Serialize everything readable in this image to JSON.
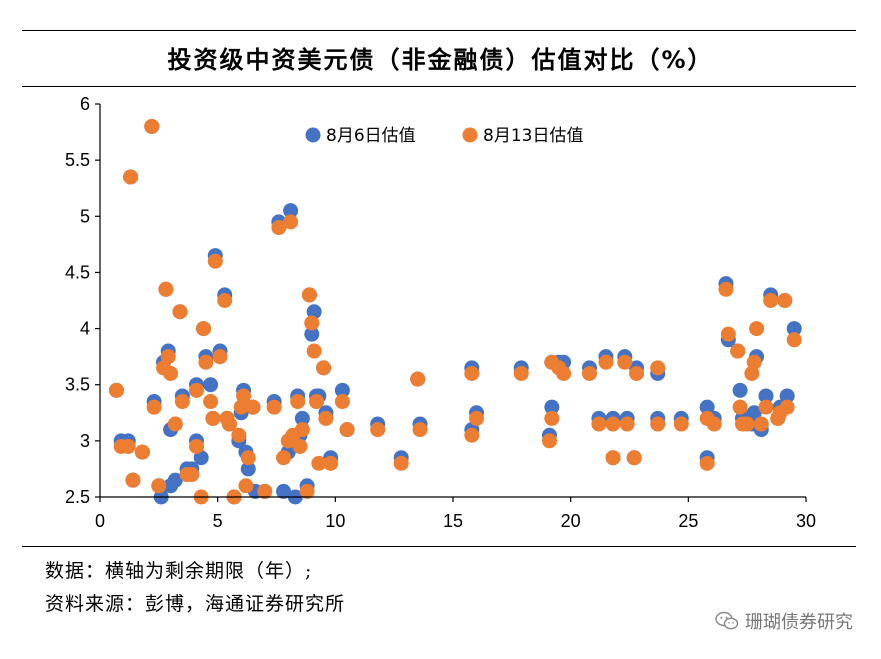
{
  "title": "投资级中资美元债（非金融债）估值对比（%）",
  "notes": {
    "line1": "数据：横轴为剩余期限（年）;",
    "line2": "资料来源：彭博，海通证券研究所"
  },
  "watermark": {
    "text": "珊瑚债券研究",
    "icon": "wechat-icon"
  },
  "colors": {
    "series1": "#4472C4",
    "series2": "#ED7D31",
    "axis": "#000000"
  },
  "chart_data": {
    "type": "scatter",
    "title": "投资级中资美元债（非金融债）估值对比（%）",
    "xlabel": "",
    "ylabel": "",
    "xlim": [
      0,
      30
    ],
    "ylim": [
      2.5,
      6
    ],
    "x_ticks": [
      "0",
      "5",
      "10",
      "15",
      "20",
      "25",
      "30"
    ],
    "y_ticks": [
      "2.5",
      "3",
      "3.5",
      "4",
      "4.5",
      "5",
      "5.5",
      "6"
    ],
    "legend_position": "top",
    "grid": false,
    "series": [
      {
        "name": "8月6日估值",
        "color": "#4472C4",
        "points": [
          [
            0.7,
            3.45
          ],
          [
            0.9,
            3.0
          ],
          [
            1.2,
            3.0
          ],
          [
            1.3,
            5.35
          ],
          [
            1.4,
            2.65
          ],
          [
            1.8,
            2.9
          ],
          [
            2.2,
            5.8
          ],
          [
            2.3,
            3.35
          ],
          [
            2.5,
            2.6
          ],
          [
            2.6,
            2.5
          ],
          [
            2.7,
            3.7
          ],
          [
            2.8,
            4.35
          ],
          [
            2.9,
            3.8
          ],
          [
            3.0,
            2.6
          ],
          [
            3.0,
            3.1
          ],
          [
            3.2,
            2.65
          ],
          [
            3.4,
            4.15
          ],
          [
            3.5,
            3.4
          ],
          [
            3.7,
            2.75
          ],
          [
            3.9,
            2.75
          ],
          [
            4.1,
            3.5
          ],
          [
            4.1,
            3.0
          ],
          [
            4.3,
            2.85
          ],
          [
            4.4,
            4.0
          ],
          [
            4.5,
            3.75
          ],
          [
            4.7,
            3.5
          ],
          [
            4.8,
            3.2
          ],
          [
            4.9,
            4.65
          ],
          [
            5.1,
            3.8
          ],
          [
            5.3,
            4.3
          ],
          [
            5.4,
            3.2
          ],
          [
            5.5,
            3.15
          ],
          [
            5.7,
            2.5
          ],
          [
            5.9,
            3.0
          ],
          [
            6.0,
            3.25
          ],
          [
            6.1,
            3.45
          ],
          [
            6.2,
            2.9
          ],
          [
            6.3,
            2.75
          ],
          [
            6.5,
            3.3
          ],
          [
            6.6,
            2.55
          ],
          [
            7.0,
            2.55
          ],
          [
            7.4,
            3.35
          ],
          [
            7.6,
            4.95
          ],
          [
            7.8,
            2.55
          ],
          [
            8.0,
            2.9
          ],
          [
            8.1,
            5.05
          ],
          [
            8.2,
            3.0
          ],
          [
            8.3,
            2.5
          ],
          [
            8.4,
            3.4
          ],
          [
            8.5,
            3.05
          ],
          [
            8.6,
            3.2
          ],
          [
            8.8,
            2.6
          ],
          [
            8.9,
            4.3
          ],
          [
            9.0,
            3.95
          ],
          [
            9.1,
            4.15
          ],
          [
            9.2,
            3.4
          ],
          [
            9.3,
            3.4
          ],
          [
            9.5,
            3.65
          ],
          [
            9.6,
            3.25
          ],
          [
            9.8,
            2.85
          ],
          [
            10.3,
            3.45
          ],
          [
            10.5,
            3.1
          ],
          [
            11.8,
            3.15
          ],
          [
            12.8,
            2.85
          ],
          [
            13.5,
            3.55
          ],
          [
            13.6,
            3.15
          ],
          [
            15.8,
            3.65
          ],
          [
            15.8,
            3.1
          ],
          [
            16.0,
            3.25
          ],
          [
            17.9,
            3.65
          ],
          [
            19.1,
            3.05
          ],
          [
            19.2,
            3.3
          ],
          [
            19.2,
            3.7
          ],
          [
            19.5,
            3.7
          ],
          [
            19.7,
            3.7
          ],
          [
            20.8,
            3.65
          ],
          [
            21.2,
            3.2
          ],
          [
            21.5,
            3.75
          ],
          [
            21.8,
            2.85
          ],
          [
            21.8,
            3.2
          ],
          [
            22.3,
            3.75
          ],
          [
            22.4,
            3.2
          ],
          [
            22.7,
            2.85
          ],
          [
            22.8,
            3.65
          ],
          [
            23.7,
            3.2
          ],
          [
            23.7,
            3.6
          ],
          [
            24.7,
            3.2
          ],
          [
            25.8,
            2.85
          ],
          [
            25.8,
            3.3
          ],
          [
            26.1,
            3.2
          ],
          [
            26.6,
            4.4
          ],
          [
            26.7,
            3.9
          ],
          [
            27.1,
            3.8
          ],
          [
            27.2,
            3.45
          ],
          [
            27.3,
            3.2
          ],
          [
            27.5,
            3.2
          ],
          [
            27.7,
            3.15
          ],
          [
            27.8,
            3.25
          ],
          [
            27.9,
            3.75
          ],
          [
            28.1,
            3.1
          ],
          [
            28.3,
            3.4
          ],
          [
            28.5,
            4.3
          ],
          [
            28.8,
            3.2
          ],
          [
            28.9,
            3.3
          ],
          [
            29.1,
            4.25
          ],
          [
            29.2,
            3.4
          ],
          [
            29.5,
            4.0
          ]
        ]
      },
      {
        "name": "8月13日估值",
        "color": "#ED7D31",
        "points": [
          [
            0.7,
            3.45
          ],
          [
            0.9,
            2.95
          ],
          [
            1.2,
            2.95
          ],
          [
            1.3,
            5.35
          ],
          [
            1.4,
            2.65
          ],
          [
            1.8,
            2.9
          ],
          [
            2.2,
            5.8
          ],
          [
            2.3,
            3.3
          ],
          [
            2.5,
            2.6
          ],
          [
            2.7,
            3.65
          ],
          [
            2.8,
            4.35
          ],
          [
            2.9,
            3.75
          ],
          [
            3.0,
            3.6
          ],
          [
            3.2,
            3.15
          ],
          [
            3.4,
            4.15
          ],
          [
            3.5,
            3.35
          ],
          [
            3.7,
            2.7
          ],
          [
            3.9,
            2.7
          ],
          [
            4.1,
            3.45
          ],
          [
            4.1,
            2.95
          ],
          [
            4.3,
            2.5
          ],
          [
            4.4,
            4.0
          ],
          [
            4.5,
            3.7
          ],
          [
            4.7,
            3.35
          ],
          [
            4.8,
            3.2
          ],
          [
            4.9,
            4.6
          ],
          [
            5.1,
            3.75
          ],
          [
            5.3,
            4.25
          ],
          [
            5.4,
            3.2
          ],
          [
            5.5,
            3.15
          ],
          [
            5.7,
            2.5
          ],
          [
            5.9,
            3.05
          ],
          [
            6.0,
            3.3
          ],
          [
            6.1,
            3.4
          ],
          [
            6.2,
            2.6
          ],
          [
            6.3,
            2.85
          ],
          [
            6.5,
            3.3
          ],
          [
            7.0,
            2.55
          ],
          [
            7.4,
            3.3
          ],
          [
            7.6,
            4.9
          ],
          [
            7.8,
            2.85
          ],
          [
            8.0,
            3.0
          ],
          [
            8.1,
            4.95
          ],
          [
            8.2,
            3.05
          ],
          [
            8.4,
            3.35
          ],
          [
            8.5,
            2.95
          ],
          [
            8.6,
            3.1
          ],
          [
            8.8,
            2.55
          ],
          [
            8.9,
            4.3
          ],
          [
            9.0,
            4.05
          ],
          [
            9.1,
            3.8
          ],
          [
            9.2,
            3.35
          ],
          [
            9.3,
            2.8
          ],
          [
            9.5,
            3.65
          ],
          [
            9.6,
            3.2
          ],
          [
            9.8,
            2.8
          ],
          [
            10.3,
            3.35
          ],
          [
            10.5,
            3.1
          ],
          [
            11.8,
            3.1
          ],
          [
            12.8,
            2.8
          ],
          [
            13.5,
            3.55
          ],
          [
            13.6,
            3.1
          ],
          [
            15.8,
            3.6
          ],
          [
            15.8,
            3.05
          ],
          [
            16.0,
            3.2
          ],
          [
            17.9,
            3.6
          ],
          [
            19.1,
            3.0
          ],
          [
            19.2,
            3.2
          ],
          [
            19.2,
            3.7
          ],
          [
            19.5,
            3.65
          ],
          [
            19.7,
            3.6
          ],
          [
            20.8,
            3.6
          ],
          [
            21.2,
            3.15
          ],
          [
            21.5,
            3.7
          ],
          [
            21.8,
            2.85
          ],
          [
            21.8,
            3.15
          ],
          [
            22.3,
            3.7
          ],
          [
            22.4,
            3.15
          ],
          [
            22.7,
            2.85
          ],
          [
            22.8,
            3.6
          ],
          [
            23.7,
            3.15
          ],
          [
            23.7,
            3.65
          ],
          [
            24.7,
            3.15
          ],
          [
            25.8,
            2.8
          ],
          [
            25.8,
            3.2
          ],
          [
            26.1,
            3.15
          ],
          [
            26.6,
            4.35
          ],
          [
            26.7,
            3.95
          ],
          [
            27.1,
            3.8
          ],
          [
            27.2,
            3.3
          ],
          [
            27.3,
            3.15
          ],
          [
            27.5,
            3.15
          ],
          [
            27.7,
            3.6
          ],
          [
            27.8,
            3.7
          ],
          [
            27.9,
            4.0
          ],
          [
            28.1,
            3.15
          ],
          [
            28.3,
            3.3
          ],
          [
            28.5,
            4.25
          ],
          [
            28.8,
            3.2
          ],
          [
            28.9,
            3.25
          ],
          [
            29.1,
            4.25
          ],
          [
            29.2,
            3.3
          ],
          [
            29.5,
            3.9
          ]
        ]
      }
    ]
  }
}
